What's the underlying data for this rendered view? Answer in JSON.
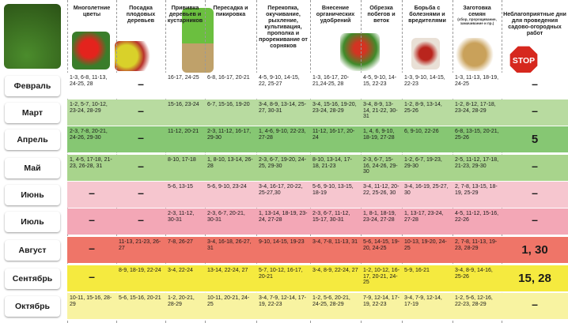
{
  "headers": [
    "Многолетние цветы",
    "Посадка плодовых деревьев",
    "Прививка деревьев и кустарников",
    "Пересадка и пикировка",
    "Перекопка, окучивание, рыхление, культивация, прополка и прореживание от сорняков",
    "Внесение органических удобрений",
    "Обрезка побегов и веток",
    "Борьба с болезнями и вредителями",
    "Заготовка семян",
    "Неблагоприятные дни для проведения садово-огородных работ"
  ],
  "seed_note": "(сбор, пророщивание, замачивание и пр.)",
  "stop_text": "STOP",
  "rows": [
    {
      "month": "Февраль",
      "cells": [
        "1-3, 6-8, 11-13, 24-25, 28",
        "–",
        "16-17, 24-25",
        "6-8, 16-17, 20-21",
        "4-5, 9-10, 14-15, 22, 25-27",
        "1-3, 16-17, 20-21,24-25, 28",
        "4-5, 9-10, 14-15, 22-23",
        "1-3, 9-10, 14-15, 22-23",
        "1-3, 11-13, 18-19, 24-25",
        "–"
      ]
    },
    {
      "month": "Март",
      "cells": [
        "1-2, 5-7, 10-12, 23-24, 28-29",
        "–",
        "15-16, 23-24",
        "6-7, 15-16, 19-20",
        "3-4, 8-9, 13-14, 25-27, 30-31",
        "3-4, 15-16, 19-20, 23-24, 28-29",
        "3-4, 8-9, 13-14, 21-22, 30-31",
        "1-2, 8-9, 13-14, 25-26",
        "1-2, 8-12, 17-18, 23-24, 28-29",
        "–"
      ]
    },
    {
      "month": "Апрель",
      "cells": [
        "2-3, 7-8, 20-21, 24-26, 29-30",
        "–",
        "11-12, 20-21",
        "2-3, 11-12, 16-17, 29-30",
        "1, 4-6, 9-10, 22-23, 27-28",
        "11-12, 16-17, 20-24",
        "1, 4, 6, 9-10, 18-19, 27-28",
        "6, 9-10, 22-26",
        "6-8, 13-15, 20-21, 25-26",
        "5"
      ]
    },
    {
      "month": "Май",
      "cells": [
        "1, 4-5, 17-18, 21-23, 26-28, 31",
        "–",
        "8-10, 17-18",
        "1, 8-10, 13-14, 26-28",
        "2-3, 6-7, 19-20, 24-25, 29-30",
        "8-10, 13-14, 17-18, 21-23",
        "2-3, 6-7, 15-16, 24-26, 29-30",
        "1-2, 6-7, 19-23, 29-30",
        "2-5, 11-12, 17-18, 21-23, 29-30",
        "–"
      ]
    },
    {
      "month": "Июнь",
      "cells": [
        "–",
        "–",
        "5-6, 13-15",
        "5-6, 9-10, 23-24",
        "3-4, 16-17, 20-22, 25-27,30",
        "5-6, 9-10, 13-15, 18-19",
        "3-4, 11-12, 20-22, 25-26, 30",
        "3-4, 16-19, 25-27, 30",
        "2, 7-8, 13-15, 18-19, 25-29",
        "–"
      ]
    },
    {
      "month": "Июль",
      "cells": [
        "–",
        "–",
        "2-3, 11-12, 30-31",
        "2-3, 6-7, 20-21, 30-31",
        "1, 13-14, 18-19, 23-24, 27-28",
        "2-3, 6-7, 11-12, 15-17, 30-31",
        "1, 8-1, 18-19, 23-24, 27-28",
        "1, 13-17, 23-24, 27-28",
        "4-5, 11-12, 15-16, 22-26",
        "–"
      ]
    },
    {
      "month": "Август",
      "cells": [
        "–",
        "11-13, 21-23, 26-27",
        "7-8, 26-27",
        "3-4, 16-18, 26-27, 31",
        "9-10, 14-15, 19-23",
        "3-4, 7-8, 11-13, 31",
        "5-6, 14-15, 19-20, 24-25",
        "10-13, 19-20, 24-25",
        "2, 7-8, 11-13, 19-23, 28-29",
        "1, 30"
      ]
    },
    {
      "month": "Сентябрь",
      "cells": [
        "–",
        "8-9, 18-19, 22-24",
        "3-4, 22-24",
        "13-14, 22-24, 27",
        "5-7, 10-12, 16-17, 20-21",
        "3-4, 8-9, 22-24, 27",
        "1-2, 10-12, 16-17, 20-21, 24-25",
        "5-9, 16-21",
        "3-4, 8-9, 14-16, 25-26",
        "15, 28"
      ]
    },
    {
      "month": "Октябрь",
      "cells": [
        "10-11, 15-16, 28-29",
        "5-6, 15-16, 20-21",
        "1-2, 20-21, 28-29",
        "10-11, 20-21, 24-25",
        "3-4, 7-9, 12-14, 17-19, 22-23",
        "1-2, 5-6, 20-21, 24-25, 28-29",
        "7-9, 12-14, 17-19, 22-23",
        "3-4, 7-9, 12-14, 17-19",
        "1-2, 5-6, 12-16, 22-23, 28-29",
        "–"
      ]
    }
  ],
  "colors": [
    "#ffffff",
    "#b8dba0",
    "#86c773",
    "#a8d48c",
    "#f6c6cf",
    "#f3a7b6",
    "#ef7568",
    "#f5ea3f",
    "#f8f3a1"
  ]
}
